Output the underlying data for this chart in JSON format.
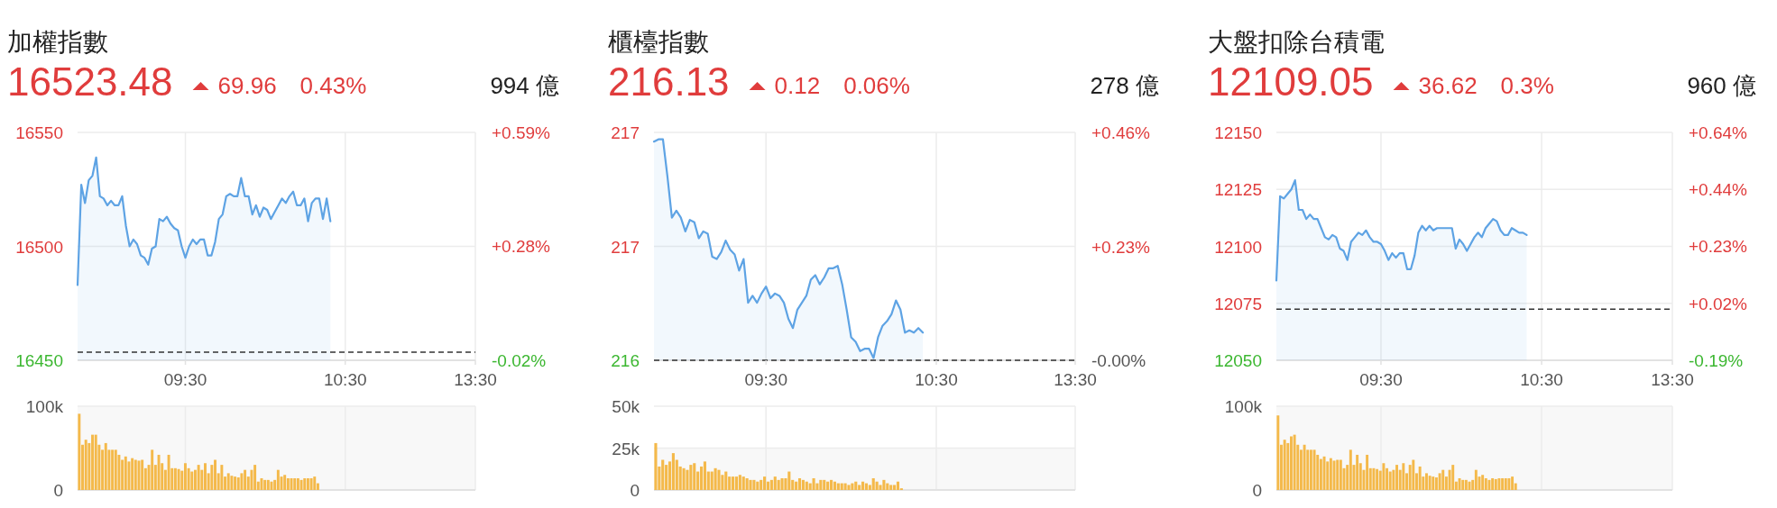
{
  "chart_data": [
    {
      "type": "area",
      "title": "加權指數",
      "annotations": [
        "16523.48",
        "69.96",
        "0.43%",
        "994 億"
      ],
      "color": "#5ea3e4",
      "grid": true,
      "categories": [
        null,
        null,
        null,
        null,
        null,
        null,
        null,
        null,
        null,
        null,
        null,
        null,
        null,
        null,
        null,
        null,
        null,
        null,
        null,
        null,
        null,
        null,
        null,
        null,
        null,
        null,
        null,
        null,
        null,
        "09:30",
        null,
        null,
        null,
        null,
        null,
        null,
        null,
        null,
        null,
        null,
        null,
        null,
        null,
        null,
        null,
        null,
        null,
        null,
        null,
        null,
        null,
        null,
        null,
        null,
        null,
        null,
        null,
        null,
        null,
        null,
        null,
        null,
        null,
        null,
        null,
        null,
        null,
        null,
        null,
        null,
        null,
        null,
        "10:30",
        null,
        null,
        null,
        null,
        null,
        null,
        null,
        null,
        null,
        null,
        null,
        null,
        null,
        null,
        null,
        null,
        null,
        null,
        null,
        null,
        null,
        null,
        null,
        null,
        null,
        null,
        null,
        null,
        null,
        null,
        null,
        null,
        null,
        null,
        "13:30"
      ],
      "values": [
        16483,
        16527,
        16519,
        16529,
        16531,
        16539,
        16522,
        16521,
        16518,
        16520,
        16518,
        16518,
        16522,
        16509,
        16500,
        16503,
        16501,
        16496,
        16495,
        16492,
        16499,
        16500,
        16512,
        16511,
        16513,
        16510,
        16508,
        16507,
        16500,
        16495,
        16500,
        16503,
        16501,
        16503,
        16503,
        16496,
        16496,
        16502,
        16512,
        16514,
        16522,
        16523,
        16522,
        16522,
        16530,
        16522,
        16522,
        16514,
        16518,
        16513,
        16517,
        16516,
        16512,
        16515,
        16518,
        16521,
        16519,
        16522,
        16524,
        16518,
        16518,
        16521,
        16511,
        16519,
        16521,
        16521,
        16512,
        16521,
        16511,
        null,
        null,
        null,
        null,
        null,
        null,
        null,
        null,
        null,
        null,
        null,
        null,
        null,
        null,
        null,
        null,
        null,
        null,
        null,
        null,
        null,
        null,
        null,
        null,
        null,
        null,
        null,
        null,
        null,
        null,
        null,
        null,
        null,
        null,
        null,
        null,
        null,
        null,
        null
      ],
      "ylim": [
        16450,
        16550
      ],
      "yticks": [
        16450,
        16500,
        16550
      ],
      "y2lim": [
        -0.021,
        0.586
      ],
      "y2ticks": [
        {
          "value": -0.021,
          "label": "-0.02%"
        },
        {
          "value": 0.283,
          "label": "+0.28%"
        },
        {
          "value": 0.586,
          "label": "+0.59%"
        }
      ],
      "ref_lines": [
        {
          "axis": "y",
          "value": 16453.52,
          "color": "#333333",
          "line_style": "dashed"
        }
      ]
    },
    {
      "type": "bar",
      "color": "#f4b94a",
      "grid": true,
      "tick_labels": "y",
      "categories": [
        null,
        null,
        null,
        null,
        null,
        null,
        null,
        null,
        null,
        null,
        null,
        null,
        null,
        null,
        null,
        null,
        null,
        null,
        null,
        null,
        null,
        null,
        null,
        null,
        null,
        null,
        null,
        null,
        null,
        null,
        null,
        null,
        null,
        null,
        null,
        null,
        null,
        null,
        null,
        null,
        null,
        null,
        null,
        null,
        null,
        null,
        null,
        null,
        null,
        null,
        null,
        null,
        null,
        null,
        null,
        null,
        null,
        null,
        null,
        null,
        null,
        null,
        null,
        null,
        null,
        null,
        null,
        null,
        null,
        null,
        null,
        null,
        null,
        null,
        null,
        null,
        null,
        null,
        null,
        null,
        null,
        null,
        null,
        null,
        null,
        null,
        null,
        null,
        null,
        null,
        null,
        null,
        null,
        null,
        null,
        null,
        null,
        null,
        null,
        null,
        null,
        null,
        null,
        null,
        null,
        null,
        null,
        null,
        null,
        null,
        null,
        null,
        null,
        null,
        null,
        null,
        null,
        null,
        null,
        null
      ],
      "values": [
        91000,
        54000,
        60000,
        56000,
        66000,
        66000,
        54000,
        48000,
        56000,
        48000,
        48000,
        48000,
        42000,
        36000,
        40000,
        34000,
        38000,
        36000,
        35000,
        36000,
        26000,
        30000,
        48000,
        30000,
        42000,
        32000,
        24000,
        42000,
        26000,
        26000,
        25000,
        23000,
        32000,
        26000,
        22000,
        24000,
        30000,
        24000,
        32000,
        20000,
        30000,
        36000,
        20000,
        30000,
        16000,
        20000,
        17000,
        16000,
        15000,
        20000,
        24000,
        16000,
        24000,
        30000,
        10000,
        14000,
        12000,
        12000,
        10000,
        12000,
        24000,
        16000,
        18000,
        14000,
        14000,
        14000,
        14000,
        12000,
        14000,
        14000,
        14000,
        16000,
        8000,
        null,
        null,
        null,
        null,
        null,
        null,
        null,
        null,
        null,
        null,
        null,
        null,
        null,
        null,
        null,
        null,
        null,
        null,
        null,
        null,
        null,
        null,
        null,
        null,
        null,
        null,
        null,
        null,
        null,
        null,
        null,
        null,
        null,
        null,
        null,
        null,
        null,
        null,
        null,
        null,
        null,
        null,
        null,
        null,
        null,
        null,
        null
      ],
      "ylim": [
        0,
        100000
      ],
      "yticks": [
        0,
        {
          "value": 100000,
          "label": "100k"
        }
      ],
      "bands": [
        {
          "axis": "y",
          "from": 0,
          "to": 100000,
          "color": "#f8f8f8"
        }
      ]
    },
    {
      "type": "area",
      "title": "櫃檯指數",
      "annotations": [
        "216.13",
        "0.12",
        "0.06%",
        "278 億"
      ],
      "color": "#5ea3e4",
      "grid": true,
      "categories": [
        null,
        null,
        null,
        null,
        null,
        null,
        null,
        null,
        null,
        null,
        null,
        null,
        null,
        null,
        null,
        null,
        null,
        null,
        null,
        null,
        null,
        null,
        null,
        null,
        null,
        "09:30",
        null,
        null,
        null,
        null,
        null,
        null,
        null,
        null,
        null,
        null,
        null,
        null,
        null,
        null,
        null,
        null,
        null,
        null,
        null,
        null,
        null,
        null,
        null,
        null,
        null,
        null,
        null,
        null,
        null,
        null,
        null,
        null,
        null,
        null,
        null,
        null,
        null,
        "10:30",
        null,
        null,
        null,
        null,
        null,
        null,
        null,
        null,
        null,
        null,
        null,
        null,
        null,
        null,
        null,
        null,
        null,
        null,
        null,
        null,
        null,
        null,
        null,
        null,
        null,
        null,
        null,
        null,
        null,
        null,
        "13:30"
      ],
      "values": [
        216.96,
        216.97,
        216.97,
        216.81,
        216.63,
        216.66,
        216.63,
        216.57,
        216.62,
        216.61,
        216.54,
        216.57,
        216.56,
        216.46,
        216.45,
        216.48,
        216.53,
        216.49,
        216.47,
        216.4,
        216.45,
        216.26,
        216.29,
        216.26,
        216.3,
        216.33,
        216.28,
        216.3,
        216.29,
        216.26,
        216.19,
        216.15,
        216.23,
        216.26,
        216.29,
        216.36,
        216.38,
        216.34,
        216.37,
        216.41,
        216.41,
        216.42,
        216.34,
        216.23,
        216.11,
        216.09,
        216.05,
        216.06,
        216.06,
        216.02,
        216.11,
        216.16,
        216.18,
        216.21,
        216.27,
        216.23,
        216.13,
        216.14,
        216.13,
        216.15,
        216.13,
        null,
        null,
        null,
        null,
        null,
        null,
        null,
        null,
        null,
        null,
        null,
        null,
        null,
        null,
        null,
        null,
        null,
        null,
        null,
        null,
        null,
        null,
        null,
        null,
        null,
        null,
        null,
        null,
        null,
        null,
        null,
        null,
        null,
        null
      ],
      "ylim": [
        216.01,
        217.0
      ],
      "yticks": [
        {
          "value": 216.01,
          "label": "216"
        },
        {
          "value": 216.505,
          "label": "217"
        },
        {
          "value": 217.0,
          "label": "217"
        }
      ],
      "y2lim": [
        0,
        0.458
      ],
      "y2ticks": [
        {
          "value": 0,
          "label": "-0.00%"
        },
        {
          "value": 0.229,
          "label": "+0.23%"
        },
        {
          "value": 0.458,
          "label": "+0.46%"
        }
      ],
      "ref_lines": [
        {
          "axis": "y",
          "value": 216.01,
          "color": "#333333",
          "line_style": "dashed"
        }
      ]
    },
    {
      "type": "bar",
      "color": "#f4b94a",
      "grid": true,
      "tick_labels": "y",
      "categories": [
        null,
        null,
        null,
        null,
        null,
        null,
        null,
        null,
        null,
        null,
        null,
        null,
        null,
        null,
        null,
        null,
        null,
        null,
        null,
        null,
        null,
        null,
        null,
        null,
        null,
        null,
        null,
        null,
        null,
        null,
        null,
        null,
        null,
        null,
        null,
        null,
        null,
        null,
        null,
        null,
        null,
        null,
        null,
        null,
        null,
        null,
        null,
        null,
        null,
        null,
        null,
        null,
        null,
        null,
        null,
        null,
        null,
        null,
        null,
        null,
        null,
        null,
        null,
        null,
        null,
        null,
        null,
        null,
        null,
        null,
        null,
        null,
        null,
        null,
        null,
        null,
        null,
        null,
        null,
        null,
        null,
        null,
        null,
        null,
        null,
        null,
        null,
        null,
        null,
        null,
        null,
        null,
        null,
        null,
        null,
        null,
        null,
        null,
        null,
        null,
        null,
        null,
        null,
        null,
        null,
        null,
        null,
        null,
        null,
        null,
        null,
        null,
        null,
        null,
        null,
        null,
        null,
        null,
        null,
        null
      ],
      "values": [
        28000,
        14000,
        18000,
        15000,
        17000,
        22000,
        18000,
        14000,
        13000,
        12000,
        15000,
        16000,
        11000,
        14000,
        17000,
        11000,
        11000,
        13000,
        12000,
        9000,
        11000,
        8000,
        8000,
        8000,
        9000,
        8000,
        7000,
        6000,
        6000,
        5000,
        6000,
        8000,
        5000,
        6000,
        8000,
        6000,
        7000,
        7000,
        11000,
        6000,
        5000,
        7000,
        6000,
        5000,
        4000,
        7000,
        4000,
        6000,
        6000,
        5000,
        6000,
        5000,
        4000,
        4000,
        4000,
        3000,
        4000,
        5000,
        3000,
        5000,
        4000,
        3000,
        7000,
        5000,
        3000,
        6000,
        4000,
        3000,
        3000,
        5000,
        1000,
        null,
        null,
        null,
        null,
        null,
        null,
        null,
        null,
        null,
        null,
        null,
        null,
        null,
        null,
        null,
        null,
        null,
        null,
        null,
        null,
        null,
        null,
        null,
        null,
        null,
        null,
        null,
        null,
        null,
        null,
        null,
        null,
        null,
        null,
        null,
        null,
        null,
        null,
        null,
        null,
        null,
        null,
        null,
        null,
        null,
        null,
        null,
        null,
        null
      ],
      "ylim": [
        0,
        50000
      ],
      "yticks": [
        0,
        {
          "value": 25000,
          "label": "25k"
        },
        {
          "value": 50000,
          "label": "50k"
        }
      ],
      "bands": [
        {
          "axis": "y",
          "from": 0,
          "to": 25000,
          "color": "#f8f8f8"
        }
      ]
    },
    {
      "type": "area",
      "title": "大盤扣除台積電",
      "annotations": [
        "12109.05",
        "36.62",
        "0.3%",
        "960 億"
      ],
      "color": "#5ea3e4",
      "grid": true,
      "categories": [
        null,
        null,
        null,
        null,
        null,
        null,
        null,
        null,
        null,
        null,
        null,
        null,
        null,
        null,
        null,
        null,
        null,
        null,
        null,
        null,
        null,
        null,
        null,
        null,
        null,
        null,
        null,
        null,
        "09:30",
        null,
        null,
        null,
        null,
        null,
        null,
        null,
        null,
        null,
        null,
        null,
        null,
        null,
        null,
        null,
        null,
        null,
        null,
        null,
        null,
        null,
        null,
        null,
        null,
        null,
        null,
        null,
        null,
        null,
        null,
        null,
        null,
        null,
        null,
        null,
        null,
        null,
        null,
        null,
        null,
        null,
        null,
        "10:30",
        null,
        null,
        null,
        null,
        null,
        null,
        null,
        null,
        null,
        null,
        null,
        null,
        null,
        null,
        null,
        null,
        null,
        null,
        null,
        null,
        null,
        null,
        null,
        null,
        null,
        null,
        null,
        null,
        null,
        null,
        null,
        null,
        null,
        null,
        "13:30"
      ],
      "values": [
        12085,
        12122,
        12121,
        12123,
        12125,
        12129,
        12116,
        12116,
        12112,
        12114,
        12112,
        12112,
        12108,
        12104,
        12103,
        12105,
        12104,
        12099,
        12098,
        12094,
        12102,
        12104,
        12106,
        12105,
        12107,
        12104,
        12102,
        12102,
        12101,
        12098,
        12094,
        12097,
        12095,
        12097,
        12097,
        12090,
        12090,
        12096,
        12106,
        12109,
        12107,
        12109,
        12107,
        12108,
        12108,
        12108,
        12108,
        12108,
        12099,
        12103,
        12101,
        12098,
        12101,
        12104,
        12106,
        12104,
        12108,
        12110,
        12112,
        12111,
        12107,
        12105,
        12105,
        12108,
        12107,
        12106,
        12106,
        12105,
        null,
        null,
        null,
        null,
        null,
        null,
        null,
        null,
        null,
        null,
        null,
        null,
        null,
        null,
        null,
        null,
        null,
        null,
        null,
        null,
        null,
        null,
        null,
        null,
        null,
        null,
        null,
        null,
        null,
        null,
        null,
        null,
        null,
        null,
        null,
        null,
        null,
        null,
        null
      ],
      "ylim": [
        12050,
        12150
      ],
      "yticks": [
        12050,
        12075,
        12100,
        12125,
        12150
      ],
      "y2lim": [
        -0.186,
        0.643
      ],
      "y2ticks": [
        {
          "value": -0.186,
          "label": "-0.19%"
        },
        {
          "value": 0.021,
          "label": "+0.02%"
        },
        {
          "value": 0.229,
          "label": "+0.23%"
        },
        {
          "value": 0.436,
          "label": "+0.44%"
        },
        {
          "value": 0.643,
          "label": "+0.64%"
        }
      ],
      "ref_lines": [
        {
          "axis": "y",
          "value": 12072.43,
          "color": "#333333",
          "line_style": "dashed"
        }
      ]
    },
    {
      "type": "bar",
      "color": "#f4b94a",
      "grid": true,
      "tick_labels": "y",
      "categories": [
        null,
        null,
        null,
        null,
        null,
        null,
        null,
        null,
        null,
        null,
        null,
        null,
        null,
        null,
        null,
        null,
        null,
        null,
        null,
        null,
        null,
        null,
        null,
        null,
        null,
        null,
        null,
        null,
        null,
        null,
        null,
        null,
        null,
        null,
        null,
        null,
        null,
        null,
        null,
        null,
        null,
        null,
        null,
        null,
        null,
        null,
        null,
        null,
        null,
        null,
        null,
        null,
        null,
        null,
        null,
        null,
        null,
        null,
        null,
        null,
        null,
        null,
        null,
        null,
        null,
        null,
        null,
        null,
        null,
        null,
        null,
        null,
        null,
        null,
        null,
        null,
        null,
        null,
        null,
        null,
        null,
        null,
        null,
        null,
        null,
        null,
        null,
        null,
        null,
        null,
        null,
        null,
        null,
        null,
        null,
        null,
        null,
        null,
        null,
        null,
        null,
        null,
        null,
        null,
        null,
        null,
        null,
        null,
        null,
        null,
        null,
        null,
        null,
        null,
        null,
        null,
        null,
        null,
        null,
        null
      ],
      "values": [
        89000,
        54000,
        60000,
        56000,
        64000,
        66000,
        54000,
        48000,
        54000,
        48000,
        48000,
        48000,
        42000,
        37000,
        40000,
        34000,
        38000,
        35000,
        36000,
        36000,
        26000,
        30000,
        48000,
        30000,
        42000,
        32000,
        24000,
        42000,
        26000,
        26000,
        25000,
        23000,
        32000,
        26000,
        22000,
        24000,
        30000,
        24000,
        32000,
        20000,
        30000,
        36000,
        20000,
        28000,
        16000,
        20000,
        17000,
        16000,
        15000,
        20000,
        24000,
        16000,
        24000,
        30000,
        10000,
        14000,
        12000,
        12000,
        10000,
        12000,
        24000,
        16000,
        18000,
        14000,
        12000,
        14000,
        13000,
        14000,
        14000,
        14000,
        14000,
        16000,
        8000,
        null,
        null,
        null,
        null,
        null,
        null,
        null,
        null,
        null,
        null,
        null,
        null,
        null,
        null,
        null,
        null,
        null,
        null,
        null,
        null,
        null,
        null,
        null,
        null,
        null,
        null,
        null,
        null,
        null,
        null,
        null,
        null,
        null,
        null,
        null,
        null,
        null,
        null,
        null,
        null,
        null,
        null,
        null,
        null,
        null,
        null,
        null
      ],
      "ylim": [
        0,
        100000
      ],
      "yticks": [
        0,
        {
          "value": 100000,
          "label": "100k"
        }
      ],
      "bands": [
        {
          "axis": "y",
          "from": 0,
          "to": 100000,
          "color": "#f8f8f8"
        }
      ]
    }
  ]
}
